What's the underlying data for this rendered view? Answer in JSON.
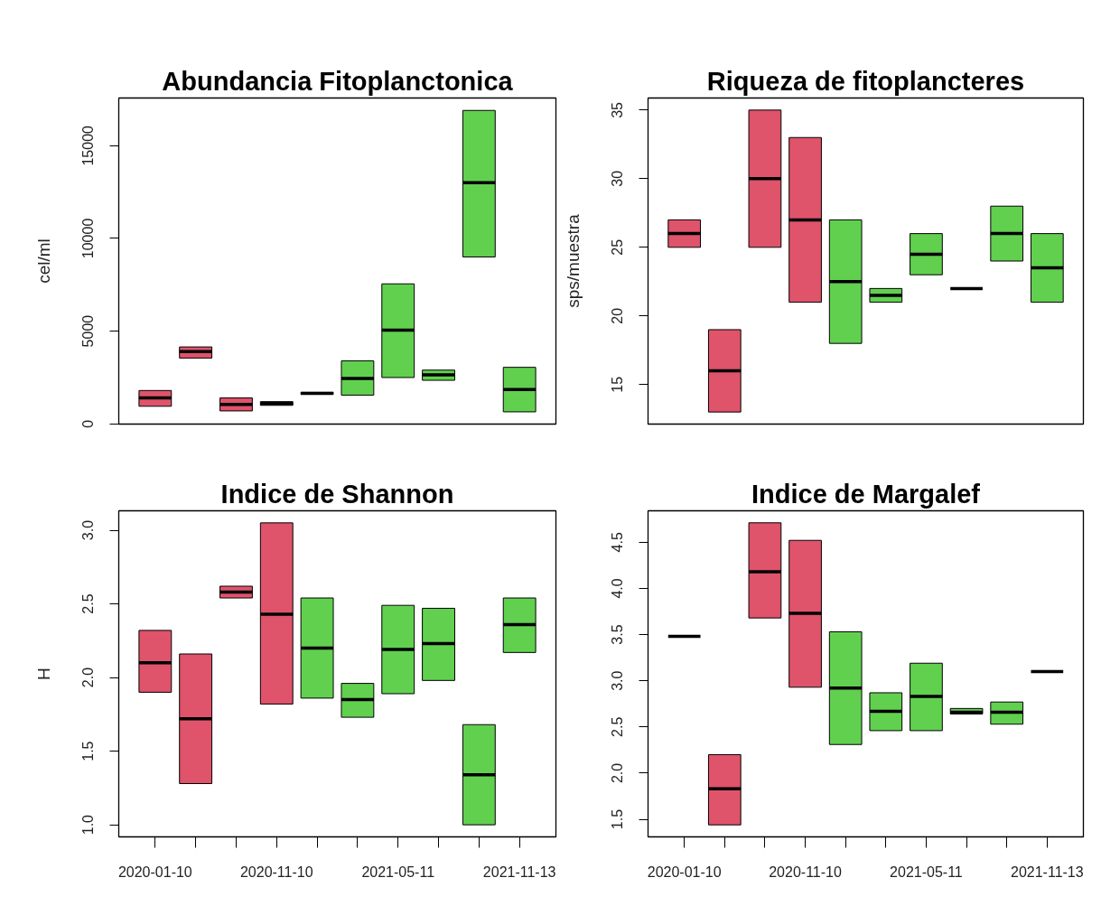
{
  "chart_data": [
    {
      "type": "box",
      "title": "Abundancia Fitoplanctonica",
      "ylabel": "cel/ml",
      "tick_labels": "y",
      "categories": [
        "2020-01-10",
        null,
        null,
        "2020-11-10",
        null,
        null,
        "2021-05-11",
        null,
        null,
        "2021-11-13"
      ],
      "boxes": [
        {
          "low": 950,
          "q1": 950,
          "median": 1400,
          "q3": 1800,
          "high": 1800
        },
        {
          "low": 3550,
          "q1": 3550,
          "median": 3900,
          "q3": 4150,
          "high": 4150
        },
        {
          "low": 700,
          "q1": 700,
          "median": 1050,
          "q3": 1400,
          "high": 1400
        },
        {
          "low": 1000,
          "q1": 1000,
          "median": 1100,
          "q3": 1200,
          "high": 1200
        },
        {
          "low": 1600,
          "q1": 1600,
          "median": 1650,
          "q3": 1700,
          "high": 1700
        },
        {
          "low": 1550,
          "q1": 1550,
          "median": 2450,
          "q3": 3400,
          "high": 3400
        },
        {
          "low": 2500,
          "q1": 2500,
          "median": 5050,
          "q3": 7550,
          "high": 7550
        },
        {
          "low": 2350,
          "q1": 2350,
          "median": 2650,
          "q3": 2900,
          "high": 2900
        },
        {
          "low": 9000,
          "q1": 9000,
          "median": 13000,
          "q3": 16900,
          "high": 16900
        },
        {
          "low": 650,
          "q1": 650,
          "median": 1850,
          "q3": 3050,
          "high": 3050
        }
      ],
      "colors": [
        "#df536b",
        "#df536b",
        "#df536b",
        "#df536b",
        "#61d04f",
        "#61d04f",
        "#61d04f",
        "#61d04f",
        "#61d04f",
        "#61d04f"
      ],
      "ylim": [
        -10,
        17570
      ],
      "yticks": [
        0,
        5000,
        10000,
        15000
      ]
    },
    {
      "type": "box",
      "title": "Riqueza de fitoplancteres",
      "ylabel": "sps/muestra",
      "tick_labels": "y",
      "categories": [
        "2020-01-10",
        null,
        null,
        "2020-11-10",
        null,
        null,
        "2021-05-11",
        null,
        null,
        "2021-11-13"
      ],
      "boxes": [
        {
          "low": 25,
          "q1": 25,
          "median": 26,
          "q3": 27,
          "high": 27
        },
        {
          "low": 13,
          "q1": 13,
          "median": 16,
          "q3": 19,
          "high": 19
        },
        {
          "low": 25,
          "q1": 25,
          "median": 30,
          "q3": 35,
          "high": 35
        },
        {
          "low": 21,
          "q1": 21,
          "median": 27,
          "q3": 33,
          "high": 33
        },
        {
          "low": 18,
          "q1": 18,
          "median": 22.5,
          "q3": 27,
          "high": 27
        },
        {
          "low": 21,
          "q1": 21,
          "median": 21.5,
          "q3": 22,
          "high": 22
        },
        {
          "low": 23,
          "q1": 23,
          "median": 24.5,
          "q3": 26,
          "high": 26
        },
        {
          "low": 22,
          "q1": 22,
          "median": 22,
          "q3": 22,
          "high": 22
        },
        {
          "low": 24,
          "q1": 24,
          "median": 26,
          "q3": 28,
          "high": 28
        },
        {
          "low": 21,
          "q1": 21,
          "median": 23.5,
          "q3": 26,
          "high": 26
        }
      ],
      "colors": [
        "#df536b",
        "#df536b",
        "#df536b",
        "#df536b",
        "#61d04f",
        "#61d04f",
        "#61d04f",
        "#000000",
        "#61d04f",
        "#61d04f"
      ],
      "ylim": [
        12.12,
        35.88
      ],
      "yticks": [
        15,
        20,
        25,
        30,
        35
      ]
    },
    {
      "type": "box",
      "title": "Indice de Shannon",
      "ylabel": "H",
      "categories": [
        "2020-01-10",
        null,
        null,
        "2020-11-10",
        null,
        null,
        "2021-05-11",
        null,
        null,
        "2021-11-13"
      ],
      "boxes": [
        {
          "low": 1.9,
          "q1": 1.9,
          "median": 2.1,
          "q3": 2.32,
          "high": 2.32
        },
        {
          "low": 1.28,
          "q1": 1.28,
          "median": 1.72,
          "q3": 2.16,
          "high": 2.16
        },
        {
          "low": 2.54,
          "q1": 2.54,
          "median": 2.58,
          "q3": 2.62,
          "high": 2.62
        },
        {
          "low": 1.82,
          "q1": 1.82,
          "median": 2.43,
          "q3": 3.05,
          "high": 3.05
        },
        {
          "low": 1.86,
          "q1": 1.86,
          "median": 2.2,
          "q3": 2.54,
          "high": 2.54
        },
        {
          "low": 1.73,
          "q1": 1.73,
          "median": 1.85,
          "q3": 1.96,
          "high": 1.96
        },
        {
          "low": 1.89,
          "q1": 1.89,
          "median": 2.19,
          "q3": 2.49,
          "high": 2.49
        },
        {
          "low": 1.98,
          "q1": 1.98,
          "median": 2.23,
          "q3": 2.47,
          "high": 2.47
        },
        {
          "low": 1.0,
          "q1": 1.0,
          "median": 1.34,
          "q3": 1.68,
          "high": 1.68
        },
        {
          "low": 2.17,
          "q1": 2.17,
          "median": 2.36,
          "q3": 2.54,
          "high": 2.54
        }
      ],
      "colors": [
        "#df536b",
        "#df536b",
        "#df536b",
        "#df536b",
        "#61d04f",
        "#61d04f",
        "#61d04f",
        "#61d04f",
        "#61d04f",
        "#61d04f"
      ],
      "ylim": [
        0.918,
        3.132
      ],
      "yticks": [
        {
          "value": 1,
          "label": "1.0"
        },
        1.5,
        {
          "value": 2,
          "label": "2.0"
        },
        2.5,
        {
          "value": 3,
          "label": "3.0"
        }
      ]
    },
    {
      "type": "box",
      "title": "Indice de Margalef",
      "categories": [
        "2020-01-10",
        null,
        null,
        "2020-11-10",
        null,
        null,
        "2021-05-11",
        null,
        null,
        "2021-11-13"
      ],
      "boxes": [
        {
          "low": 3.48,
          "q1": 3.48,
          "median": 3.48,
          "q3": 3.48,
          "high": 3.48
        },
        {
          "low": 1.44,
          "q1": 1.44,
          "median": 1.83,
          "q3": 2.2,
          "high": 2.2
        },
        {
          "low": 3.68,
          "q1": 3.68,
          "median": 4.18,
          "q3": 4.71,
          "high": 4.71
        },
        {
          "low": 2.93,
          "q1": 2.93,
          "median": 3.73,
          "q3": 4.52,
          "high": 4.52
        },
        {
          "low": 2.31,
          "q1": 2.31,
          "median": 2.92,
          "q3": 3.53,
          "high": 3.53
        },
        {
          "low": 2.46,
          "q1": 2.46,
          "median": 2.67,
          "q3": 2.87,
          "high": 2.87
        },
        {
          "low": 2.46,
          "q1": 2.46,
          "median": 2.83,
          "q3": 3.19,
          "high": 3.19
        },
        {
          "low": 2.64,
          "q1": 2.64,
          "median": 2.66,
          "q3": 2.7,
          "high": 2.7
        },
        {
          "low": 2.53,
          "q1": 2.53,
          "median": 2.66,
          "q3": 2.77,
          "high": 2.77
        },
        {
          "low": 3.1,
          "q1": 3.1,
          "median": 3.1,
          "q3": 3.1,
          "high": 3.1
        }
      ],
      "colors": [
        "#000000",
        "#df536b",
        "#df536b",
        "#df536b",
        "#61d04f",
        "#61d04f",
        "#61d04f",
        "#61d04f",
        "#61d04f",
        "#000000"
      ],
      "ylim": [
        1.31,
        4.84
      ],
      "yticks": [
        1.5,
        {
          "value": 2,
          "label": "2.0"
        },
        2.5,
        {
          "value": 3,
          "label": "3.0"
        },
        3.5,
        {
          "value": 4,
          "label": "4.0"
        },
        4.5
      ]
    }
  ]
}
